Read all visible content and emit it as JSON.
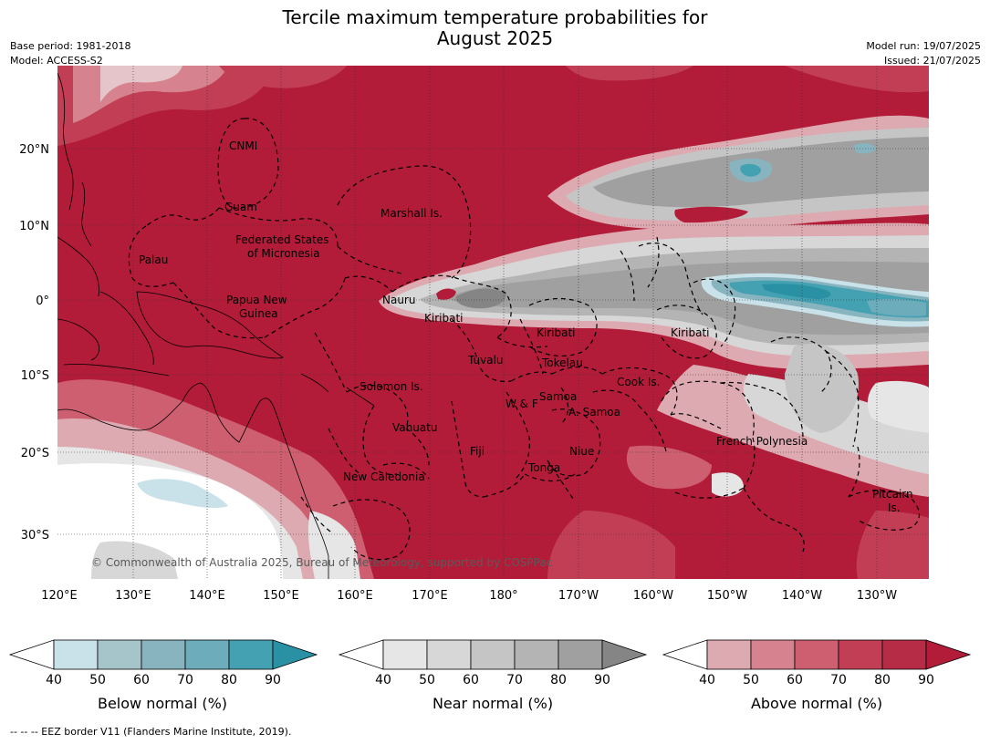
{
  "header": {
    "title_line1": "Tercile maximum temperature probabilities for",
    "title_line2": "August 2025",
    "base_period": "Base period: 1981-2018",
    "model": "Model: ACCESS-S2",
    "model_run": "Model run: 19/07/2025",
    "issued": "Issued: 21/07/2025"
  },
  "map": {
    "copyright": "© Commonwealth of Australia 2025, Bureau of Meteorology, supported by COSPPac",
    "lon_ticks": [
      "120°E",
      "130°E",
      "140°E",
      "150°E",
      "160°E",
      "170°E",
      "180°",
      "170°W",
      "160°W",
      "150°W",
      "140°W",
      "130°W"
    ],
    "lat_ticks": [
      "20°N",
      "10°N",
      "0°",
      "10°S",
      "20°S",
      "30°S"
    ],
    "labels": {
      "cnmi": "CNMI",
      "guam": "Guam",
      "marshall": "Marshall Is.",
      "fsm1": "Federated States",
      "fsm2": "of Micronesia",
      "palau": "Palau",
      "png1": "Papua New",
      "png2": "Guinea",
      "nauru": "Nauru",
      "kiribati_w": "Kiribati",
      "kiribati_c": "Kiribati",
      "kiribati_e": "Kiribati",
      "tuvalu": "Tuvalu",
      "tokelau": "Tokelau",
      "cook": "Cook Is.",
      "solomon": "Solomon Is.",
      "wf": "W & F",
      "samoa": "Samoa",
      "asamoa": "A. Samoa",
      "vanuatu": "Vanuatu",
      "fiji": "Fiji",
      "niue": "Niue",
      "fp": "French Polynesia",
      "tonga": "Tonga",
      "newcal": "New Caledonia",
      "pitcairn1": "Pitcairn",
      "pitcairn2": "Is."
    },
    "colors": {
      "above_90": "#b21c38",
      "above_80": "#c23e55",
      "above_70": "#cd5f70",
      "above_60": "#d6838f",
      "above_50": "#deaab1",
      "above_40": "#e5c5c9",
      "near_40": "#e6e6e6",
      "near_50": "#d7d7d7",
      "near_60": "#c5c5c5",
      "near_70": "#b4b4b4",
      "near_80": "#a0a0a0",
      "near_90": "#858585",
      "below_40": "#c9e1e8",
      "below_50": "#a6c5cb",
      "below_60": "#87b4bf",
      "below_70": "#6cacbb",
      "below_80": "#43a1b2",
      "below_90": "#2a91a5"
    }
  },
  "colorbars": [
    {
      "label": "Below normal (%)",
      "ticks": [
        "40",
        "50",
        "60",
        "70",
        "80",
        "90"
      ]
    },
    {
      "label": "Near normal (%)",
      "ticks": [
        "40",
        "50",
        "60",
        "70",
        "80",
        "90"
      ]
    },
    {
      "label": "Above normal (%)",
      "ticks": [
        "40",
        "50",
        "60",
        "70",
        "80",
        "90"
      ]
    }
  ],
  "footnote": "--  --  -- EEZ border V11 (Flanders Marine Institute, 2019)."
}
